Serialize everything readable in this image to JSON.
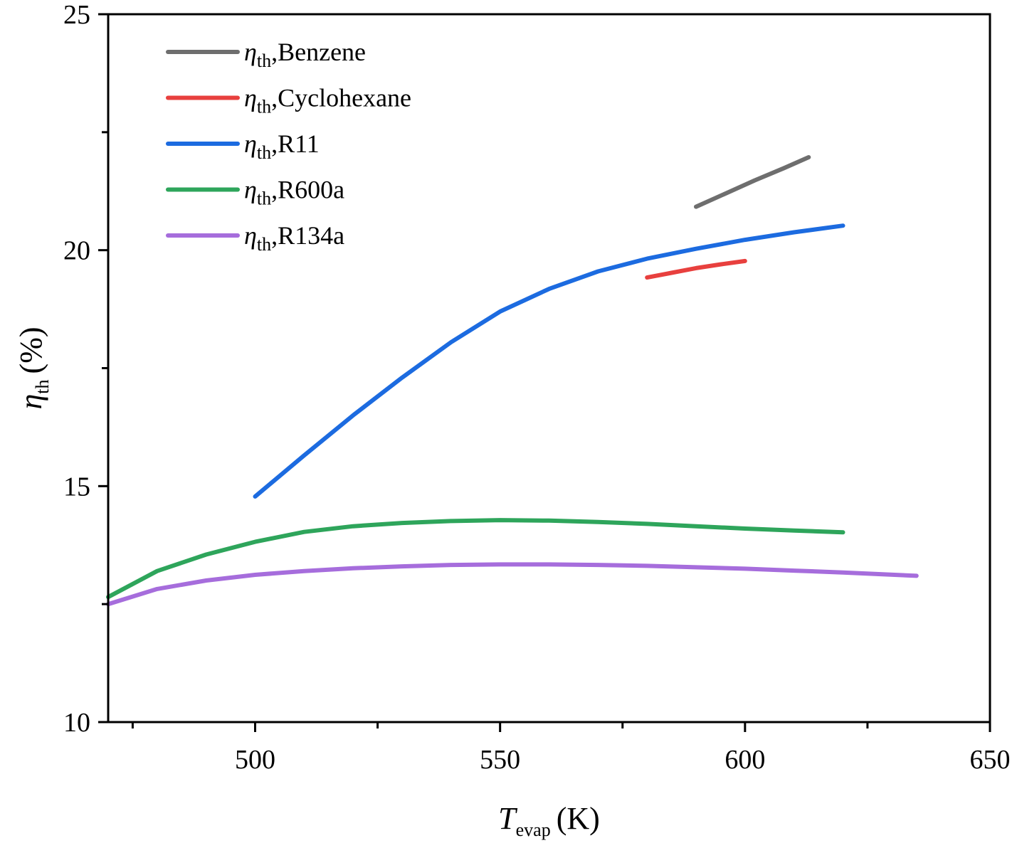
{
  "chart_data": {
    "type": "line",
    "xlabel": {
      "symbol": "T",
      "subscript": "evap",
      "unit": "(K)"
    },
    "ylabel": {
      "symbol": "η",
      "subscript": "th",
      "unit": "(%)"
    },
    "xlim": [
      470,
      650
    ],
    "ylim": [
      10,
      25
    ],
    "xticks": [
      500,
      550,
      600,
      650
    ],
    "yticks": [
      10,
      15,
      20,
      25
    ],
    "grid": false,
    "legend_position": "top-left",
    "series": [
      {
        "name": "Benzene",
        "legend_symbol": "η",
        "legend_subscript": "th",
        "color": "#6e6e6e",
        "x": [
          590,
          596,
          602,
          608,
          613
        ],
        "y": [
          20.92,
          21.2,
          21.48,
          21.74,
          21.97
        ]
      },
      {
        "name": "Cyclohexane",
        "legend_symbol": "η",
        "legend_subscript": "th",
        "color": "#e8403e",
        "x": [
          580,
          585,
          590,
          595,
          600
        ],
        "y": [
          19.42,
          19.52,
          19.62,
          19.7,
          19.77
        ]
      },
      {
        "name": "R11",
        "legend_symbol": "η",
        "legend_subscript": "th",
        "color": "#1c6be0",
        "x": [
          500,
          510,
          520,
          530,
          540,
          550,
          560,
          570,
          580,
          590,
          600,
          610,
          620
        ],
        "y": [
          14.78,
          15.65,
          16.5,
          17.3,
          18.05,
          18.7,
          19.18,
          19.55,
          19.82,
          20.03,
          20.22,
          20.38,
          20.52
        ]
      },
      {
        "name": "R600a",
        "legend_symbol": "η",
        "legend_subscript": "th",
        "color": "#2ea55b",
        "x": [
          470,
          480,
          490,
          500,
          510,
          520,
          530,
          540,
          550,
          560,
          570,
          580,
          590,
          600,
          610,
          620
        ],
        "y": [
          12.65,
          13.2,
          13.55,
          13.82,
          14.03,
          14.15,
          14.22,
          14.26,
          14.28,
          14.27,
          14.24,
          14.2,
          14.15,
          14.1,
          14.06,
          14.02
        ]
      },
      {
        "name": "R134a",
        "legend_symbol": "η",
        "legend_subscript": "th",
        "color": "#a66ddc",
        "x": [
          470,
          480,
          490,
          500,
          510,
          520,
          530,
          540,
          550,
          560,
          570,
          580,
          590,
          600,
          610,
          620,
          635
        ],
        "y": [
          12.5,
          12.82,
          13.0,
          13.12,
          13.2,
          13.26,
          13.3,
          13.33,
          13.34,
          13.34,
          13.33,
          13.31,
          13.28,
          13.25,
          13.21,
          13.17,
          13.1
        ]
      }
    ]
  }
}
